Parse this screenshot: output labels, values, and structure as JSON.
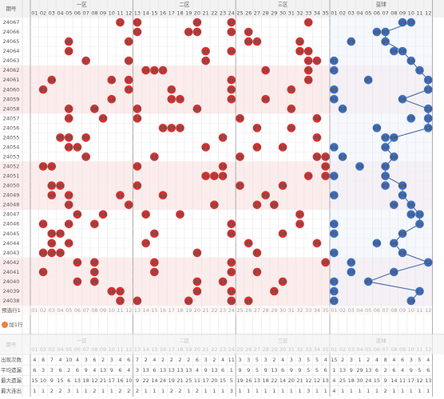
{
  "header": {
    "issue": "期号",
    "zones": [
      "一区",
      "二区",
      "三区",
      "蓝球"
    ],
    "red_numbers": [
      "01",
      "02",
      "03",
      "04",
      "05",
      "06",
      "07",
      "08",
      "09",
      "10",
      "11",
      "12",
      "13",
      "14",
      "15",
      "16",
      "17",
      "18",
      "19",
      "20",
      "21",
      "22",
      "23",
      "24",
      "25",
      "26",
      "27",
      "28",
      "29",
      "30",
      "31",
      "32",
      "33",
      "34",
      "35"
    ],
    "blue_numbers": [
      "01",
      "02",
      "03",
      "04",
      "05",
      "06",
      "07",
      "08",
      "09",
      "10",
      "11",
      "12"
    ]
  },
  "rows": [
    {
      "issue": "24067",
      "red": [
        "11",
        "13",
        "20",
        "24",
        "33"
      ],
      "blue": [
        "09",
        "10"
      ]
    },
    {
      "issue": "24066",
      "red": [
        "13",
        "19",
        "20",
        "24",
        "26"
      ],
      "blue": [
        "06",
        "07"
      ]
    },
    {
      "issue": "24065",
      "red": [
        "05",
        "12",
        "26",
        "27",
        "32"
      ],
      "blue": [
        "03",
        "07"
      ]
    },
    {
      "issue": "24064",
      "red": [
        "05",
        "21",
        "24",
        "32",
        "33"
      ],
      "blue": [
        "08",
        "09"
      ]
    },
    {
      "issue": "24063",
      "red": [
        "07",
        "12",
        "21",
        "33",
        "34"
      ],
      "blue": [
        "01",
        "10"
      ]
    },
    {
      "issue": "24062",
      "red": [
        "14",
        "15",
        "16",
        "28",
        "33"
      ],
      "blue": [
        "01",
        "11"
      ]
    },
    {
      "issue": "24061",
      "red": [
        "03",
        "10",
        "12",
        "24",
        "33"
      ],
      "blue": [
        "05",
        "12"
      ]
    },
    {
      "issue": "24060",
      "red": [
        "02",
        "12",
        "17",
        "24",
        "31"
      ],
      "blue": [
        "01",
        "12"
      ]
    },
    {
      "issue": "24059",
      "red": [
        "10",
        "17",
        "18",
        "24",
        "28"
      ],
      "blue": [
        "01",
        "09"
      ]
    },
    {
      "issue": "24058",
      "red": [
        "05",
        "08",
        "13",
        "20",
        "31"
      ],
      "blue": [
        "02",
        "12"
      ]
    },
    {
      "issue": "24057",
      "red": [
        "05",
        "09",
        "13",
        "25",
        "34"
      ],
      "blue": [
        "10",
        "12"
      ]
    },
    {
      "issue": "24056",
      "red": [
        "16",
        "17",
        "18",
        "27",
        "31"
      ],
      "blue": [
        "06",
        "12"
      ]
    },
    {
      "issue": "24055",
      "red": [
        "04",
        "05",
        "07",
        "23",
        "34"
      ],
      "blue": [
        "07",
        "08"
      ]
    },
    {
      "issue": "24054",
      "red": [
        "05",
        "06",
        "21",
        "27",
        "30"
      ],
      "blue": [
        "01",
        "07"
      ]
    },
    {
      "issue": "24053",
      "red": [
        "07",
        "15",
        "25",
        "34",
        "35"
      ],
      "blue": [
        "02",
        "08"
      ]
    },
    {
      "issue": "24052",
      "red": [
        "02",
        "03",
        "13",
        "23",
        "35"
      ],
      "blue": [
        "04",
        "07"
      ]
    },
    {
      "issue": "24051",
      "red": [
        "21",
        "22",
        "23",
        "33",
        "35"
      ],
      "blue": [
        "01",
        "07"
      ]
    },
    {
      "issue": "24050",
      "red": [
        "03",
        "04",
        "13",
        "25",
        "30"
      ],
      "blue": [
        "07",
        "09"
      ]
    },
    {
      "issue": "24049",
      "red": [
        "03",
        "05",
        "11",
        "16",
        "28"
      ],
      "blue": [
        "01",
        "09"
      ]
    },
    {
      "issue": "24048",
      "red": [
        "05",
        "12",
        "22",
        "27",
        "29"
      ],
      "blue": [
        "08",
        "10"
      ]
    },
    {
      "issue": "24047",
      "red": [
        "06",
        "09",
        "14",
        "18",
        "32"
      ],
      "blue": [
        "10",
        "11"
      ]
    },
    {
      "issue": "24046",
      "red": [
        "02",
        "05",
        "08",
        "24",
        "32"
      ],
      "blue": [
        "01",
        "11"
      ]
    },
    {
      "issue": "24045",
      "red": [
        "03",
        "04",
        "15",
        "24",
        "30"
      ],
      "blue": [
        "01",
        "09"
      ]
    },
    {
      "issue": "24044",
      "red": [
        "03",
        "05",
        "14",
        "26",
        "34"
      ],
      "blue": [
        "06",
        "08"
      ]
    },
    {
      "issue": "24043",
      "red": [
        "02",
        "03",
        "04",
        "20",
        "27"
      ],
      "blue": [
        "01",
        "09"
      ]
    },
    {
      "issue": "24042",
      "red": [
        "06",
        "08",
        "15",
        "24",
        "35"
      ],
      "blue": [
        "03",
        "12"
      ]
    },
    {
      "issue": "24041",
      "red": [
        "02",
        "08",
        "15",
        "24",
        "27"
      ],
      "blue": [
        "03",
        "08"
      ]
    },
    {
      "issue": "24040",
      "red": [
        "06",
        "08",
        "20",
        "23",
        "30"
      ],
      "blue": [
        "01",
        "05"
      ]
    },
    {
      "issue": "24039",
      "red": [
        "10",
        "11",
        "20",
        "24",
        "29"
      ],
      "blue": [
        "01",
        "11"
      ]
    },
    {
      "issue": "24038",
      "red": [
        "11",
        "13",
        "19",
        "24",
        "26"
      ],
      "blue": [
        "01",
        "10"
      ]
    }
  ],
  "preselect": "预选行1",
  "add_row": "加1行",
  "stats": [
    {
      "label": "出现次数",
      "values": [
        4,
        8,
        7,
        4,
        10,
        4,
        3,
        6,
        2,
        3,
        4,
        6,
        7,
        2,
        4,
        2,
        2,
        2,
        2,
        6,
        3,
        2,
        4,
        11,
        3,
        3,
        5,
        3,
        2,
        4,
        3,
        3,
        5,
        5,
        4,
        15,
        2,
        3,
        1,
        2,
        4,
        8,
        4,
        6,
        3,
        5,
        4
      ]
    },
    {
      "label": "平均遗漏",
      "values": [
        6,
        3,
        3,
        6,
        2,
        6,
        9,
        4,
        13,
        9,
        6,
        4,
        3,
        13,
        6,
        13,
        13,
        13,
        13,
        4,
        9,
        13,
        6,
        1,
        9,
        9,
        5,
        9,
        13,
        6,
        9,
        9,
        5,
        5,
        6,
        1,
        13,
        9,
        29,
        13,
        6,
        2,
        6,
        4,
        9,
        5,
        6
      ]
    },
    {
      "label": "最大遗漏",
      "values": [
        15,
        10,
        9,
        15,
        6,
        13,
        18,
        12,
        21,
        17,
        16,
        10,
        9,
        22,
        14,
        24,
        19,
        21,
        25,
        11,
        17,
        20,
        15,
        5,
        19,
        16,
        13,
        18,
        22,
        14,
        20,
        21,
        12,
        12,
        13,
        4,
        25,
        18,
        30,
        24,
        15,
        9,
        14,
        11,
        17,
        12,
        13
      ]
    },
    {
      "label": "最大连出",
      "values": [
        1,
        1,
        2,
        2,
        3,
        1,
        1,
        2,
        1,
        1,
        2,
        2,
        2,
        1,
        1,
        1,
        2,
        2,
        1,
        2,
        1,
        1,
        1,
        3,
        1,
        1,
        1,
        1,
        1,
        1,
        1,
        1,
        3,
        1,
        1,
        4,
        1,
        1,
        1,
        1,
        1,
        2,
        1,
        1,
        1,
        1,
        1
      ]
    }
  ]
}
